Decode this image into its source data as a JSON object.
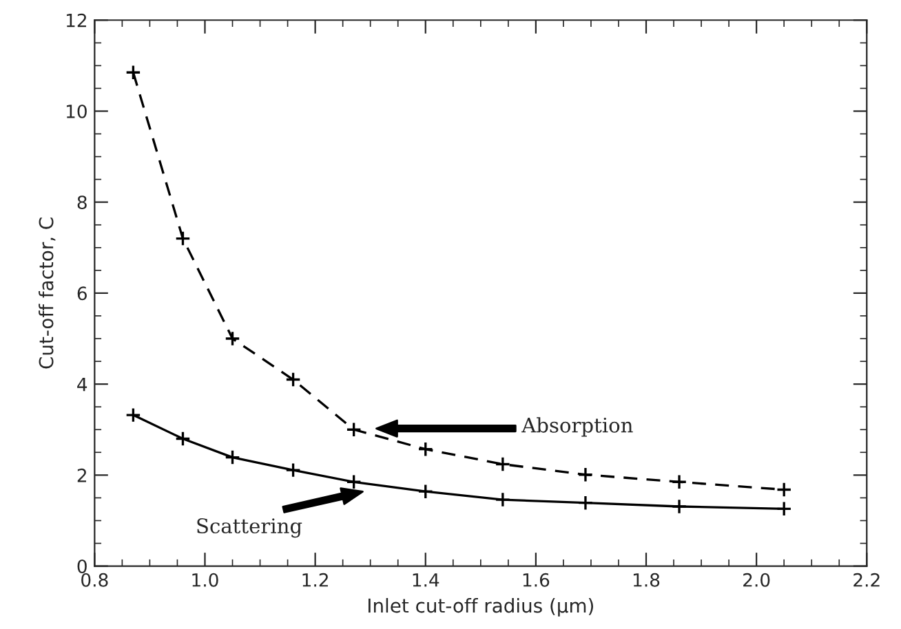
{
  "chart_data": {
    "type": "line",
    "xlabel": "Inlet cut-off radius (μm)",
    "ylabel": "Cut-off factor, C",
    "xlim": [
      0.8,
      2.2
    ],
    "xticks": [
      {
        "value": 0.8,
        "label": "0.8"
      },
      {
        "value": 1.0,
        "label": "1.0"
      },
      {
        "value": 1.2,
        "label": "1.2"
      },
      {
        "value": 1.4,
        "label": "1.4"
      },
      {
        "value": 1.6,
        "label": "1.6"
      },
      {
        "value": 1.8,
        "label": "1.8"
      },
      {
        "value": 2.0,
        "label": "2.0"
      },
      {
        "value": 2.2,
        "label": "2.2"
      }
    ],
    "ylim": [
      0,
      12
    ],
    "yticks": [
      0,
      2,
      4,
      6,
      8,
      10,
      12
    ],
    "x": [
      0.87,
      0.96,
      1.05,
      1.16,
      1.27,
      1.4,
      1.54,
      1.69,
      1.86,
      2.05
    ],
    "marker": "cross",
    "grid": false,
    "legend": false,
    "series": [
      {
        "color": "#000000",
        "line_style": "dashed",
        "values": [
          10.85,
          7.2,
          5.0,
          4.1,
          3.0,
          2.57,
          2.24,
          2.01,
          1.85,
          1.68
        ]
      },
      {
        "color": "#000000",
        "line_style": "solid",
        "values": [
          3.32,
          2.8,
          2.39,
          2.11,
          1.85,
          1.64,
          1.46,
          1.39,
          1.31,
          1.26
        ]
      }
    ],
    "annotations": [
      "Absorption",
      "Scattering"
    ]
  }
}
